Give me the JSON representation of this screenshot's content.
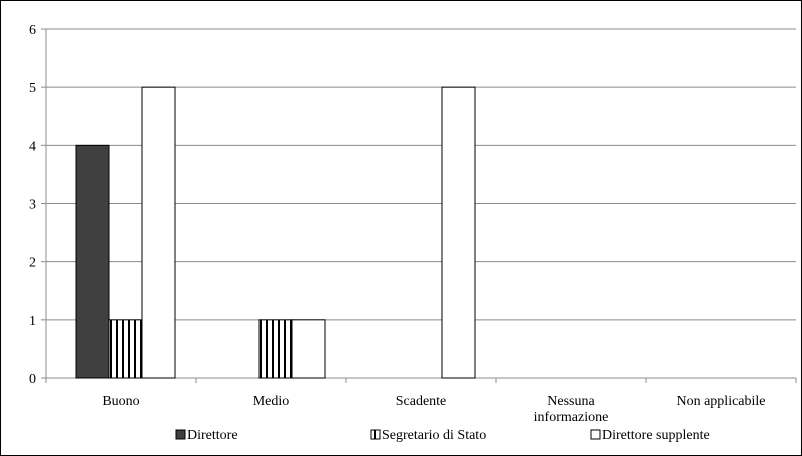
{
  "chart_data": {
    "type": "bar",
    "categories": [
      "Buono",
      "Medio",
      "Scadente",
      "Nessuna informazione",
      "Non applicabile"
    ],
    "category_label_lines": [
      [
        "Buono"
      ],
      [
        "Medio"
      ],
      [
        "Scadente"
      ],
      [
        "Nessuna",
        "informazione"
      ],
      [
        "Non applicabile"
      ]
    ],
    "series": [
      {
        "name": "Direttore",
        "values": [
          4,
          0,
          0,
          0,
          0
        ],
        "fill": "#404040",
        "pattern": "solid"
      },
      {
        "name": "Segretario di Stato",
        "values": [
          1,
          1,
          0,
          0,
          0
        ],
        "fill": "#ffffff",
        "pattern": "vertical-stripes"
      },
      {
        "name": "Direttore supplente",
        "values": [
          5,
          1,
          5,
          0,
          0
        ],
        "fill": "#ffffff",
        "pattern": "none"
      }
    ],
    "ylim": [
      0,
      6
    ],
    "yticks": [
      0,
      1,
      2,
      3,
      4,
      5,
      6
    ],
    "grid": true,
    "legend_position": "bottom",
    "title": "",
    "xlabel": "",
    "ylabel": ""
  }
}
